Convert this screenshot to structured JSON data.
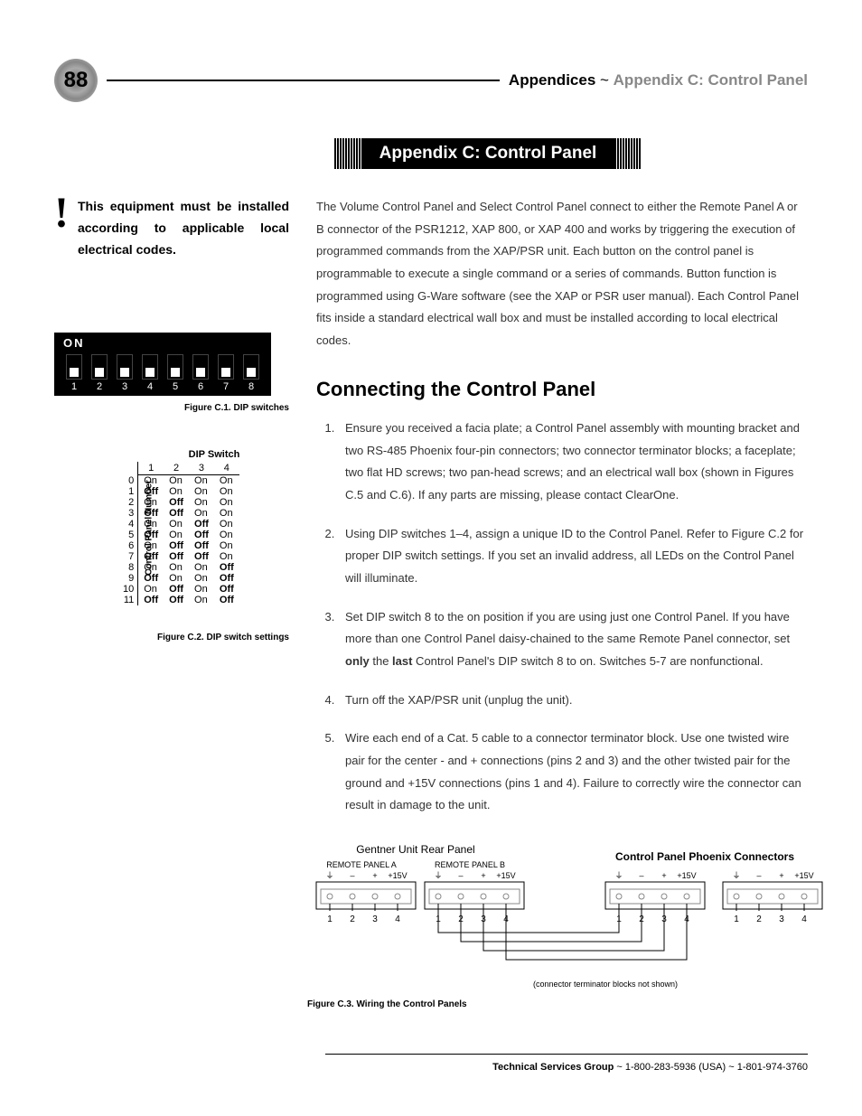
{
  "page_number": "88",
  "header": {
    "bold": "Appendices",
    "sep": " ~ ",
    "light": "Appendix C: Control Panel"
  },
  "title_banner": "Appendix C: Control Panel",
  "warning": "This equipment must be installed according to applicable local electrical codes.",
  "fig_c1": {
    "on_label": "ON",
    "switches": [
      "1",
      "2",
      "3",
      "4",
      "5",
      "6",
      "7",
      "8"
    ],
    "caption": "Figure C.1. DIP switches"
  },
  "fig_c2": {
    "title": "DIP Switch",
    "vert_label": "Control Panel Number",
    "columns": [
      "",
      "1",
      "2",
      "3",
      "4"
    ],
    "rows": [
      {
        "n": "0",
        "c": [
          "On",
          "On",
          "On",
          "On"
        ],
        "bold": [
          false,
          false,
          false,
          false
        ]
      },
      {
        "n": "1",
        "c": [
          "Off",
          "On",
          "On",
          "On"
        ],
        "bold": [
          true,
          false,
          false,
          false
        ]
      },
      {
        "n": "2",
        "c": [
          "On",
          "Off",
          "On",
          "On"
        ],
        "bold": [
          false,
          true,
          false,
          false
        ]
      },
      {
        "n": "3",
        "c": [
          "Off",
          "Off",
          "On",
          "On"
        ],
        "bold": [
          true,
          true,
          false,
          false
        ]
      },
      {
        "n": "4",
        "c": [
          "On",
          "On",
          "Off",
          "On"
        ],
        "bold": [
          false,
          false,
          true,
          false
        ]
      },
      {
        "n": "5",
        "c": [
          "Off",
          "On",
          "Off",
          "On"
        ],
        "bold": [
          true,
          false,
          true,
          false
        ]
      },
      {
        "n": "6",
        "c": [
          "On",
          "Off",
          "Off",
          "On"
        ],
        "bold": [
          false,
          true,
          true,
          false
        ]
      },
      {
        "n": "7",
        "c": [
          "Off",
          "Off",
          "Off",
          "On"
        ],
        "bold": [
          true,
          true,
          true,
          false
        ]
      },
      {
        "n": "8",
        "c": [
          "On",
          "On",
          "On",
          "Off"
        ],
        "bold": [
          false,
          false,
          false,
          true
        ]
      },
      {
        "n": "9",
        "c": [
          "Off",
          "On",
          "On",
          "Off"
        ],
        "bold": [
          true,
          false,
          false,
          true
        ]
      },
      {
        "n": "10",
        "c": [
          "On",
          "Off",
          "On",
          "Off"
        ],
        "bold": [
          false,
          true,
          false,
          true
        ]
      },
      {
        "n": "11",
        "c": [
          "Off",
          "Off",
          "On",
          "Off"
        ],
        "bold": [
          true,
          true,
          false,
          true
        ]
      }
    ],
    "caption": "Figure C.2. DIP switch settings"
  },
  "intro": "The Volume Control Panel and Select Control Panel connect to either the Remote Panel A or B connector of the PSR1212, XAP 800, or XAP 400 and works by triggering the execution of programmed commands from the XAP/PSR unit. Each button on the control panel is programmable to execute a single command or a series of commands. Button function is programmed using G-Ware software (see the XAP or PSR user manual). Each Control Panel fits inside a standard electrical wall box and must be installed according to local electrical codes.",
  "section_heading": "Connecting the Control Panel",
  "steps": [
    "Ensure you received a facia plate; a Control Panel assembly with mounting bracket and two RS-485 Phoenix four-pin connectors; two connector terminator blocks; a faceplate; two flat HD screws; two pan-head screws; and an electrical wall box (shown in Figures C.5 and C.6). If any parts are missing, please contact ClearOne.",
    "Using DIP switches 1–4, assign a unique ID to the Control Panel. Refer to Figure C.2 for proper DIP switch settings. If you set an invalid address, all LEDs on the Control Panel will illuminate.",
    "Set DIP switch 8 to the on position if you are using just one Control Panel. If you have more than one Control Panel daisy-chained to the same Remote Panel connector, set |only| the |last| Control Panel's DIP switch 8 to on. Switches 5-7 are nonfunctional.",
    "Turn off the XAP/PSR unit (unplug the unit).",
    "Wire each end of a Cat. 5 cable to a connector terminator block. Use one twisted wire pair for the center - and + connections (pins 2 and 3) and the other twisted pair for the ground and +15V connections (pins 1 and 4). Failure to correctly wire the connector can result in damage to the unit."
  ],
  "fig_c3": {
    "rear_panel_title": "Gentner Unit Rear Panel",
    "panel_a": "REMOTE PANEL A",
    "panel_b": "REMOTE PANEL B",
    "phoenix_title": "Control Panel Phoenix Connectors",
    "pin_labels": [
      "⏚",
      "–",
      "+",
      "+15V"
    ],
    "pin_numbers": [
      "1",
      "2",
      "3",
      "4"
    ],
    "note": "(connector terminator blocks not shown)",
    "caption": "Figure C.3. Wiring the Control Panels"
  },
  "footer": {
    "bold": "Technical Services Group",
    "rest": " ~ 1-800-283-5936 (USA) ~ 1-801-974-3760"
  }
}
